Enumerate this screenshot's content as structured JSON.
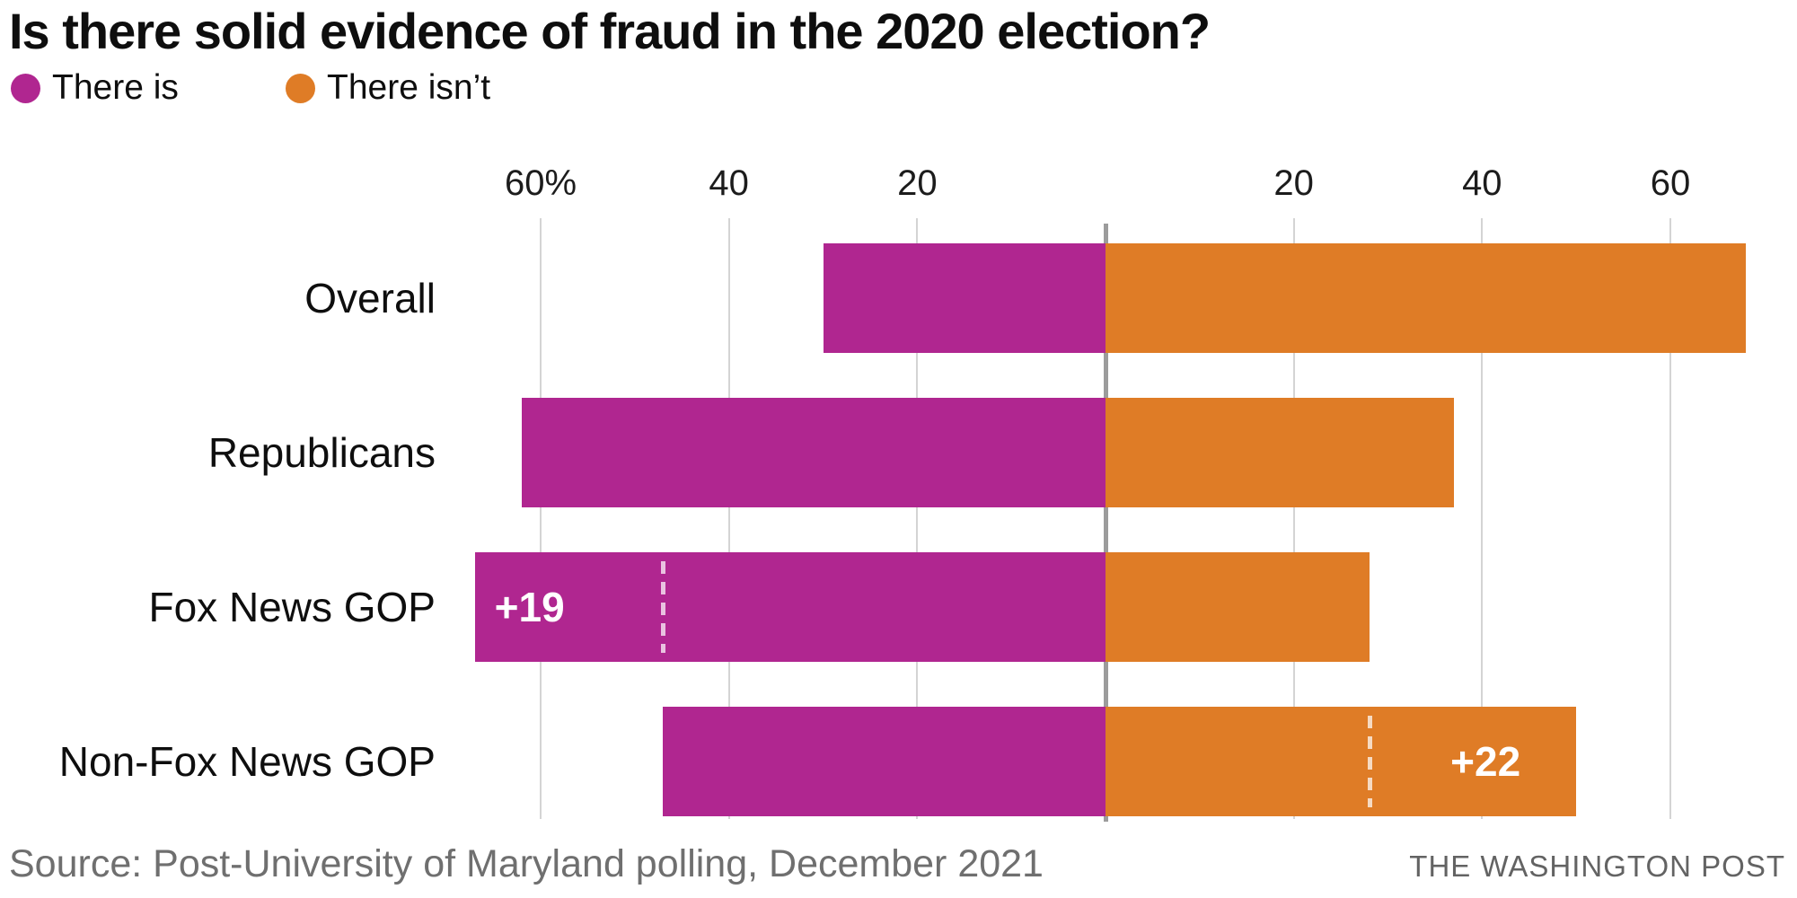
{
  "title": "Is there solid evidence of fraud in the 2020 election?",
  "legend": [
    {
      "label": "There is",
      "color": "#B02690"
    },
    {
      "label": "There isn’t",
      "color": "#DF7C26"
    }
  ],
  "source": "Source: Post-University of Maryland polling, December 2021",
  "attribution": "THE WASHINGTON POST",
  "colors": {
    "there_is": "#B02690",
    "there_isnt": "#DF7C26",
    "gridline": "#d4d4d4",
    "axis_line": "#9c9c9c",
    "annotation_text": "#ffffff",
    "source_text": "#6f6f6f",
    "title_text": "#0e0e0e"
  },
  "chart_data": {
    "type": "bar",
    "orientation": "diverging-horizontal",
    "title": "Is there solid evidence of fraud in the 2020 election?",
    "categories": [
      "Overall",
      "Republicans",
      "Fox News GOP",
      "Non-Fox News GOP"
    ],
    "series": [
      {
        "name": "There is",
        "color": "#B02690",
        "side": "left",
        "values": [
          30,
          62,
          67,
          47
        ]
      },
      {
        "name": "There isn’t",
        "color": "#DF7C26",
        "side": "right",
        "values": [
          68,
          37,
          28,
          50
        ]
      }
    ],
    "axis": {
      "unit": "%",
      "xlim": [
        -72,
        74
      ],
      "grid": true,
      "ticks": [
        {
          "label": "60%",
          "value": 60,
          "side": "left"
        },
        {
          "label": "40",
          "value": 40,
          "side": "left"
        },
        {
          "label": "20",
          "value": 20,
          "side": "left"
        },
        {
          "label": "20",
          "value": 20,
          "side": "right"
        },
        {
          "label": "40",
          "value": 40,
          "side": "right"
        },
        {
          "label": "60",
          "value": 60,
          "side": "right"
        }
      ]
    },
    "annotations": [
      {
        "category": "Fox News GOP",
        "series": "There is",
        "side": "left",
        "label": "+19",
        "reference_value": 47
      },
      {
        "category": "Non-Fox News GOP",
        "series": "There isn’t",
        "side": "right",
        "label": "+22",
        "reference_value": 28
      }
    ],
    "legend_position": "top-left"
  }
}
